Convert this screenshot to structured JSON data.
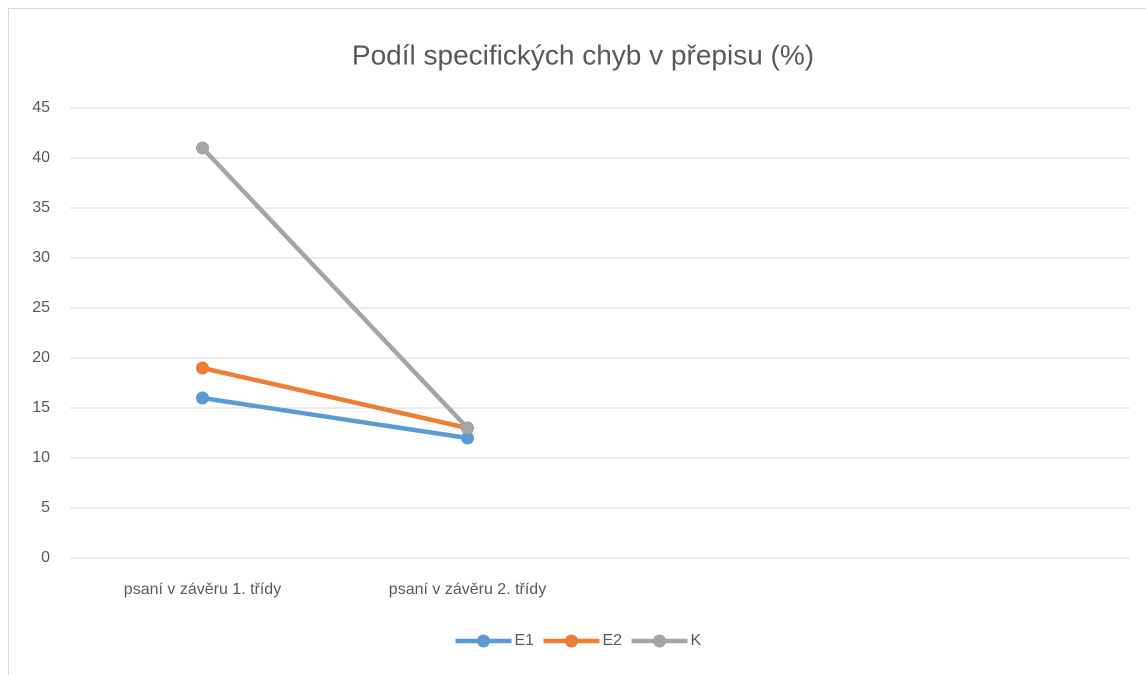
{
  "chart_data": {
    "type": "line",
    "title": "Podíl specifických chyb v přepisu (%)",
    "categories": [
      "psaní v závěru 1. třídy",
      "psaní v závěru 2. třídy",
      null,
      null
    ],
    "series": [
      {
        "name": "E1",
        "color": "#5b9bd5",
        "values": [
          16,
          12,
          null,
          null
        ]
      },
      {
        "name": "E2",
        "color": "#ed7d31",
        "values": [
          19,
          13,
          null,
          null
        ]
      },
      {
        "name": "K",
        "color": "#a5a5a5",
        "values": [
          41,
          13,
          null,
          null
        ]
      }
    ],
    "ylim": [
      0,
      45
    ],
    "yticks": [
      0,
      5,
      10,
      15,
      20,
      25,
      30,
      35,
      40,
      45
    ],
    "grid": true,
    "legend": "bottom"
  }
}
